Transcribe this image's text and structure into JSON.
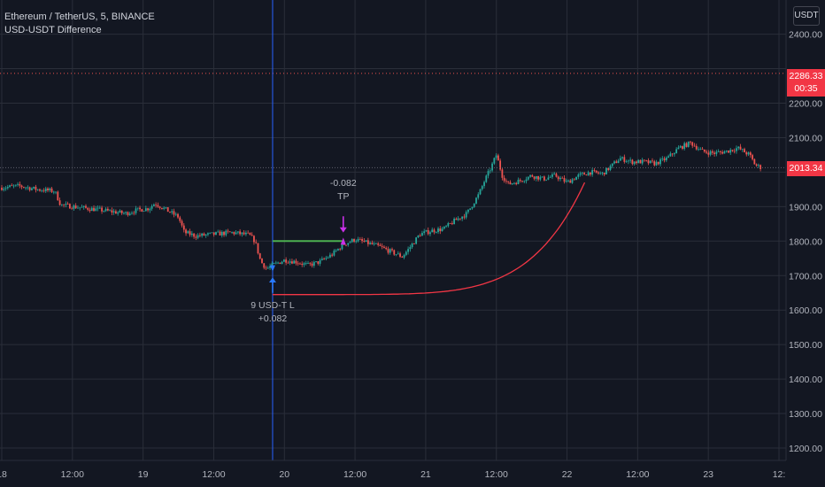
{
  "header": {
    "symbol_line": "Ethereum / TetherUS, 5, BINANCE",
    "indicator_name": "USD-USDT Difference"
  },
  "currency_button": "USDT",
  "colors": {
    "background": "#131722",
    "grid": "#2a2e39",
    "up": "#26a69a",
    "down": "#ef5350",
    "cursor": "#2962ff",
    "curve": "#f23645",
    "entry_line": "#4caf50",
    "exit_marker": "#c930e8",
    "entry_marker": "#2979ff"
  },
  "chart_data": {
    "type": "candlestick",
    "y_axis": {
      "ticks": [
        1200,
        1300,
        1400,
        1500,
        1600,
        1700,
        1800,
        1900,
        2000,
        2100,
        2200,
        2300,
        2400
      ],
      "tick_labels": [
        "1200.00",
        "1300.00",
        "1400.00",
        "1500.00",
        "1600.00",
        "1700.00",
        "1800.00",
        "1900.00",
        "2000.00",
        "2100.00",
        "2200.00",
        "",
        "2400.00"
      ],
      "range": [
        1180,
        2450
      ]
    },
    "x_axis": {
      "labels": [
        "18",
        "12:00",
        "19",
        "12:00",
        "20",
        "12:00",
        "21",
        "12:00",
        "22",
        "12:00",
        "23",
        "12:"
      ],
      "range_hours": [
        0,
        132
      ]
    },
    "price_path": [
      [
        0,
        1955
      ],
      [
        3,
        1960
      ],
      [
        6,
        1950
      ],
      [
        9,
        1945
      ],
      [
        10,
        1905
      ],
      [
        13,
        1898
      ],
      [
        16,
        1892
      ],
      [
        19,
        1885
      ],
      [
        21,
        1880
      ],
      [
        23,
        1890
      ],
      [
        25,
        1895
      ],
      [
        26,
        1910
      ],
      [
        28,
        1890
      ],
      [
        30,
        1870
      ],
      [
        31,
        1825
      ],
      [
        33,
        1815
      ],
      [
        36,
        1820
      ],
      [
        39,
        1825
      ],
      [
        42,
        1818
      ],
      [
        43,
        1800
      ],
      [
        44,
        1740
      ],
      [
        45,
        1720
      ],
      [
        46,
        1730
      ],
      [
        48,
        1745
      ],
      [
        50,
        1740
      ],
      [
        52,
        1730
      ],
      [
        54,
        1740
      ],
      [
        56,
        1760
      ],
      [
        58,
        1790
      ],
      [
        60,
        1805
      ],
      [
        62,
        1795
      ],
      [
        64,
        1785
      ],
      [
        66,
        1770
      ],
      [
        68,
        1755
      ],
      [
        69,
        1775
      ],
      [
        71,
        1820
      ],
      [
        73,
        1830
      ],
      [
        75,
        1835
      ],
      [
        77,
        1860
      ],
      [
        79,
        1880
      ],
      [
        81,
        1935
      ],
      [
        82,
        1975
      ],
      [
        83,
        2010
      ],
      [
        84,
        2050
      ],
      [
        85,
        1990
      ],
      [
        86,
        1965
      ],
      [
        88,
        1975
      ],
      [
        90,
        1990
      ],
      [
        92,
        1980
      ],
      [
        94,
        1990
      ],
      [
        96,
        1970
      ],
      [
        98,
        1990
      ],
      [
        100,
        2000
      ],
      [
        102,
        1995
      ],
      [
        103,
        2010
      ],
      [
        105,
        2040
      ],
      [
        107,
        2030
      ],
      [
        109,
        2030
      ],
      [
        111,
        2025
      ],
      [
        113,
        2040
      ],
      [
        115,
        2070
      ],
      [
        117,
        2085
      ],
      [
        119,
        2060
      ],
      [
        121,
        2055
      ],
      [
        123,
        2060
      ],
      [
        125,
        2070
      ],
      [
        127,
        2050
      ],
      [
        128,
        2020
      ],
      [
        129,
        2013
      ]
    ],
    "indicator_curve": {
      "start_hour": 46,
      "end_hour": 99,
      "start_price": 1645,
      "end_price": 1970
    },
    "entry_line": {
      "start_hour": 46,
      "end_hour": 58,
      "price": 1800
    },
    "cursor_hour": 46,
    "current_price_line": 2286.33,
    "price_labels": {
      "last_high": "2286.33",
      "countdown": "00:35",
      "current": "2013.34"
    },
    "annotations": [
      {
        "hour": 58,
        "price": 1920,
        "lines": [
          "-0.082",
          "TP"
        ]
      },
      {
        "hour": 46,
        "price": 1620,
        "lines": [
          "9 USD-T L",
          "+0.082"
        ]
      }
    ]
  }
}
